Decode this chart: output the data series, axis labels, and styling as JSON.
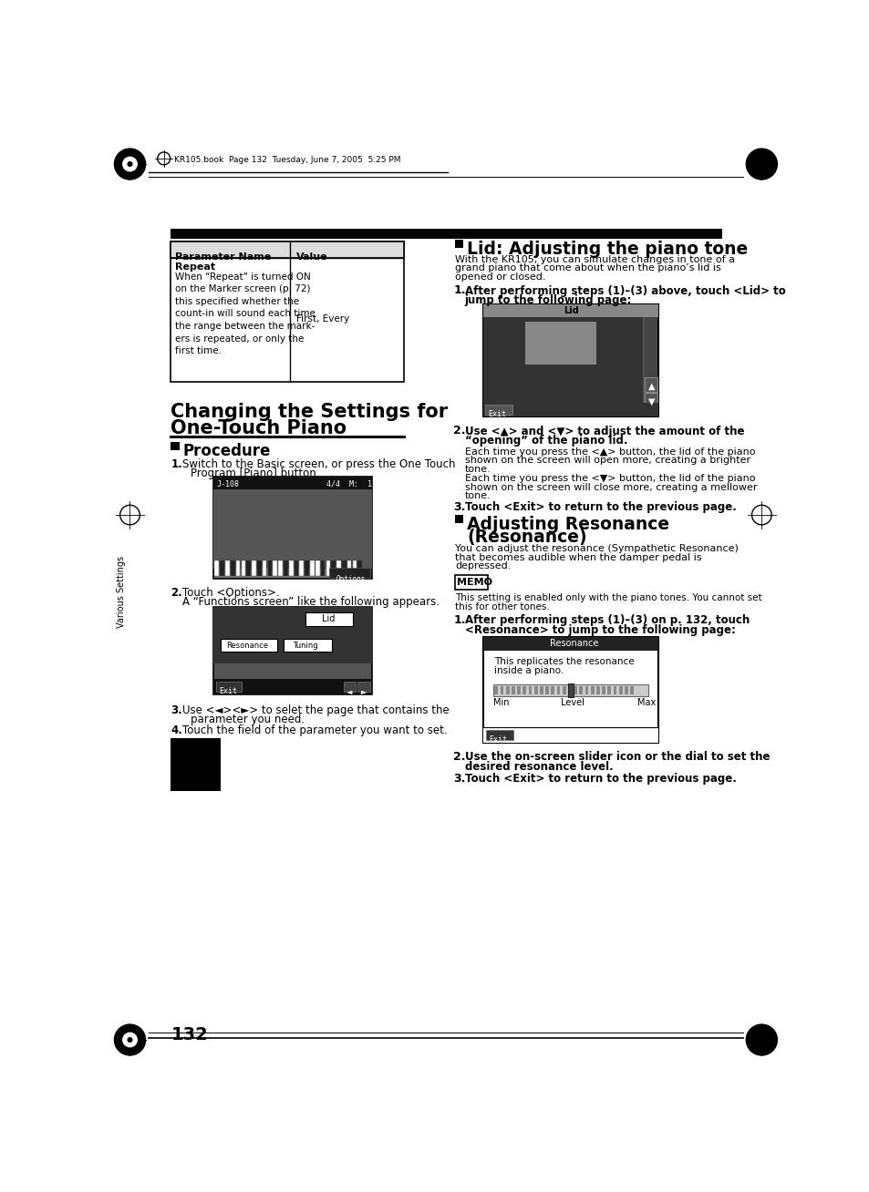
{
  "page_bg": "#ffffff",
  "page_number": "132",
  "header_text": "KR105.book  Page 132  Tuesday, June 7, 2005  5:25 PM",
  "table_header": [
    "Parameter Name",
    "Value"
  ],
  "table_row_bold": "Repeat",
  "table_row_desc": "When “Repeat” is turned ON\non the Marker screen (p. 72)\nthis specified whether the\ncount-in will sound each time\nthe range between the mark-\ners is repeated, or only the\nfirst time.",
  "table_row_value": "First, Every",
  "section_title_1": "Changing the Settings for",
  "section_title_2": "One-Touch Piano",
  "proc_head": "Procedure",
  "step1_a": "Switch to the Basic screen, or press the One Touch",
  "step1_b": "Program [Piano] button.",
  "step2_a": "Touch <Options>.",
  "step2_b": "A “Functions screen” like the following appears.",
  "step3_a": "Use <◄><►> to selet the page that contains the",
  "step3_b": "parameter you need.",
  "step4": "Touch the field of the parameter you want to set.",
  "sidebar": "Various Settings",
  "lid_title": "Lid: Adjusting the piano tone",
  "lid_intro_1": "With the KR105, you can simulate changes in tone of a",
  "lid_intro_2": "grand piano that come about when the piano’s lid is",
  "lid_intro_3": "opened or closed.",
  "lid_s1_a": "After performing steps (1)–(3) above, touch <Lid> to",
  "lid_s1_b": "jump to the following page:",
  "lid_s2_bold_1": "Use <▲> and <▼> to adjust the amount of the",
  "lid_s2_bold_2": "“opening” of the piano lid.",
  "lid_s2_c1": "Each time you press the <▲> button, the lid of the piano",
  "lid_s2_c2": "shown on the screen will open more, creating a brighter",
  "lid_s2_c3": "tone.",
  "lid_s2_d1": "Each time you press the <▼> button, the lid of the piano",
  "lid_s2_d2": "shown on the screen will close more, creating a mellower",
  "lid_s2_d3": "tone.",
  "lid_s3": "Touch <Exit> to return to the previous page.",
  "res_title_1": "Adjusting Resonance",
  "res_title_2": "(Resonance)",
  "res_intro_1": "You can adjust the resonance (Sympathetic Resonance)",
  "res_intro_2": "that becomes audible when the damper pedal is",
  "res_intro_3": "depressed.",
  "memo_text_1": "This setting is enabled only with the piano tones. You cannot set",
  "memo_text_2": "this for other tones.",
  "res_s1_a": "After performing steps (1)–(3) on p. 132, touch",
  "res_s1_b": "<Resonance> to jump to the following page:",
  "res_s2_a": "Use the on-screen slider icon or the dial to set the",
  "res_s2_b": "desired resonance level.",
  "res_s3": "Touch <Exit> to return to the previous page."
}
